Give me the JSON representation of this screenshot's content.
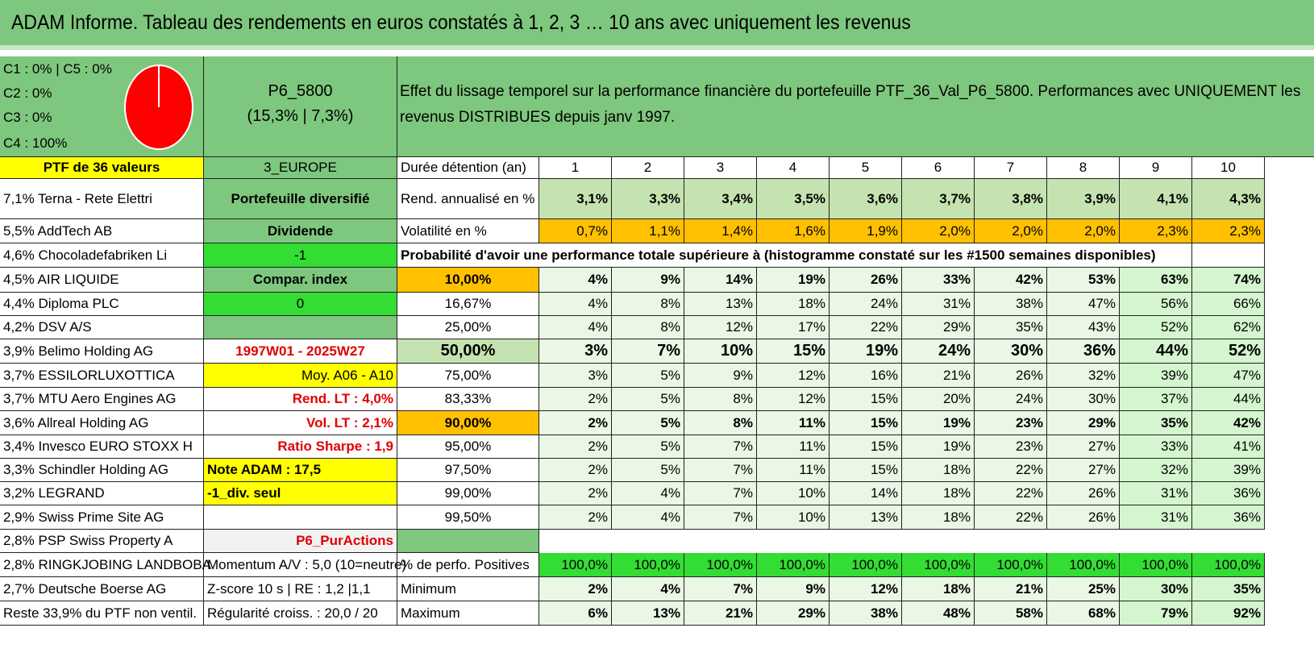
{
  "title": "ADAM Informe. Tableau des rendements en euros constatés à 1, 2, 3 … 10 ans avec uniquement les revenus",
  "pie": {
    "legend": [
      "C1 : 0% | C5 : 0%",
      "C2 : 0%",
      "C3 : 0%",
      "C4 : 100%"
    ],
    "fill_color": "#ff0000"
  },
  "portfolio": {
    "name": "P6_5800",
    "perf": "(15,3% | 7,3%)",
    "description": "Effet du lissage temporel sur la performance financière du portefeuille PTF_36_Val_P6_5800. Performances avec UNIQUEMENT les revenus DISTRIBUES depuis janv 1997."
  },
  "left_col": [
    "PTF de 36 valeurs",
    "7,1% Terna - Rete Elettri",
    "5,5% AddTech AB",
    "4,6% Chocoladefabriken Li",
    "4,5% AIR LIQUIDE",
    "4,4% Diploma PLC",
    "4,2% DSV A/S",
    "3,9% Belimo Holding AG",
    "3,7% ESSILORLUXOTTICA",
    "3,7% MTU Aero Engines AG",
    "3,6% Allreal Holding AG",
    "3,4% Invesco EURO STOXX H",
    "3,3% Schindler Holding AG",
    "3,2% LEGRAND",
    "2,9% Swiss Prime Site AG",
    "2,8% PSP Swiss Property A",
    "2,8% RINGKJOBING LANDBOBA",
    "2,7% Deutsche Boerse AG",
    "Reste 33,9% du PTF non ventil."
  ],
  "mid_col": [
    "3_EUROPE",
    "Portefeuille diversifié",
    "Dividende",
    "-1",
    "Compar. index",
    "0",
    "",
    "1997W01 - 2025W27",
    "Moy. A06 - A10",
    "Rend. LT : 4,0%",
    "Vol. LT : 2,1%",
    "Ratio Sharpe : 1,9",
    "Note ADAM : 17,5",
    "-1_div. seul",
    "",
    "P6_PurActions",
    "Momentum A/V : 5,0 (10=neutre)",
    "Z-score 10 s | RE : 1,2 |1,1",
    "Régularité croiss. : 20,0 / 20"
  ],
  "table": {
    "duration_label": "Durée détention (an)",
    "years": [
      "1",
      "2",
      "3",
      "4",
      "5",
      "6",
      "7",
      "8",
      "9",
      "10"
    ],
    "rend_label": "Rend. annualisé en %",
    "rend": [
      "3,1%",
      "3,3%",
      "3,4%",
      "3,5%",
      "3,6%",
      "3,7%",
      "3,8%",
      "3,9%",
      "4,1%",
      "4,3%"
    ],
    "vol_label": "Volatilité en %",
    "vol": [
      "0,7%",
      "1,1%",
      "1,4%",
      "1,6%",
      "1,9%",
      "2,0%",
      "2,0%",
      "2,0%",
      "2,3%",
      "2,3%"
    ],
    "prob_label": "Probabilité d'avoir une performance totale supérieure à (histogramme constaté sur les #1500 semaines disponibles)",
    "quantiles": [
      {
        "q": "10,00%",
        "v": [
          "4%",
          "9%",
          "14%",
          "19%",
          "26%",
          "33%",
          "42%",
          "53%",
          "63%",
          "74%"
        ]
      },
      {
        "q": "16,67%",
        "v": [
          "4%",
          "8%",
          "13%",
          "18%",
          "24%",
          "31%",
          "38%",
          "47%",
          "56%",
          "66%"
        ]
      },
      {
        "q": "25,00%",
        "v": [
          "4%",
          "8%",
          "12%",
          "17%",
          "22%",
          "29%",
          "35%",
          "43%",
          "52%",
          "62%"
        ]
      },
      {
        "q": "50,00%",
        "v": [
          "3%",
          "7%",
          "10%",
          "15%",
          "19%",
          "24%",
          "30%",
          "36%",
          "44%",
          "52%"
        ]
      },
      {
        "q": "75,00%",
        "v": [
          "3%",
          "5%",
          "9%",
          "12%",
          "16%",
          "21%",
          "26%",
          "32%",
          "39%",
          "47%"
        ]
      },
      {
        "q": "83,33%",
        "v": [
          "2%",
          "5%",
          "8%",
          "12%",
          "15%",
          "20%",
          "24%",
          "30%",
          "37%",
          "44%"
        ]
      },
      {
        "q": "90,00%",
        "v": [
          "2%",
          "5%",
          "8%",
          "11%",
          "15%",
          "19%",
          "23%",
          "29%",
          "35%",
          "42%"
        ]
      },
      {
        "q": "95,00%",
        "v": [
          "2%",
          "5%",
          "7%",
          "11%",
          "15%",
          "19%",
          "23%",
          "27%",
          "33%",
          "41%"
        ]
      },
      {
        "q": "97,50%",
        "v": [
          "2%",
          "5%",
          "7%",
          "11%",
          "15%",
          "18%",
          "22%",
          "27%",
          "32%",
          "39%"
        ]
      },
      {
        "q": "99,00%",
        "v": [
          "2%",
          "4%",
          "7%",
          "10%",
          "14%",
          "18%",
          "22%",
          "26%",
          "31%",
          "36%"
        ]
      },
      {
        "q": "99,50%",
        "v": [
          "2%",
          "4%",
          "7%",
          "10%",
          "13%",
          "18%",
          "22%",
          "26%",
          "31%",
          "36%"
        ]
      }
    ],
    "pos_label": "% de perfo. Positives",
    "pos": [
      "100,0%",
      "100,0%",
      "100,0%",
      "100,0%",
      "100,0%",
      "100,0%",
      "100,0%",
      "100,0%",
      "100,0%",
      "100,0%"
    ],
    "min_label": "Minimum",
    "min": [
      "2%",
      "4%",
      "7%",
      "9%",
      "12%",
      "18%",
      "21%",
      "25%",
      "30%",
      "35%"
    ],
    "max_label": "Maximum",
    "max": [
      "6%",
      "13%",
      "21%",
      "29%",
      "38%",
      "48%",
      "58%",
      "68%",
      "79%",
      "92%"
    ]
  }
}
